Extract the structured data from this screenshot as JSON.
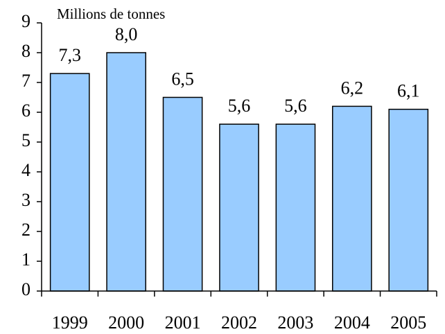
{
  "chart_data": {
    "type": "bar",
    "y_axis_label": "Millions de tonnes",
    "categories": [
      "1999",
      "2000",
      "2001",
      "2002",
      "2003",
      "2004",
      "2005"
    ],
    "values": [
      7.3,
      8.0,
      6.5,
      5.6,
      5.6,
      6.2,
      6.1
    ],
    "value_labels": [
      "7,3",
      "8,0",
      "6,5",
      "5,6",
      "5,6",
      "6,2",
      "6,1"
    ],
    "color": "#99ccff",
    "ylim": [
      0,
      9
    ],
    "yticks": [
      0,
      1,
      2,
      3,
      4,
      5,
      6,
      7,
      8,
      9
    ],
    "grid": false
  }
}
